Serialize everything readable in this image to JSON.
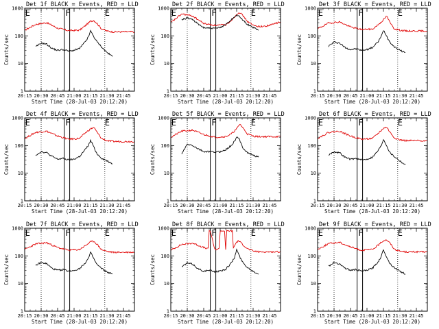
{
  "chart_data": {
    "type": "line",
    "layout": "3x3 grid of panels",
    "legend_note": "BLACK = Events, RED = LLD",
    "yscale": "log",
    "ylim": [
      1,
      1000
    ],
    "yticks": [
      "1",
      "10",
      "100",
      "1000"
    ],
    "ylabel": "Counts/sec",
    "xlabel": "Start Time (28-Jul-03 20:12:20)",
    "xlim_minutes": [
      0,
      100
    ],
    "xticks": [
      {
        "label": "20:15",
        "t": 0
      },
      {
        "label": "20:30",
        "t": 15
      },
      {
        "label": "20:45",
        "t": 30
      },
      {
        "label": "21:00",
        "t": 45
      },
      {
        "label": "21:15",
        "t": 60
      },
      {
        "label": "21:30",
        "t": 75
      },
      {
        "label": "21:45",
        "t": 90
      }
    ],
    "dotted_vlines_minutes": [
      15,
      73
    ],
    "solid_vlines_minutes": [
      36,
      41
    ],
    "flag_labels": [
      {
        "text": "E",
        "t": 0.5
      },
      {
        "text": "F",
        "t": 37
      },
      {
        "text": "E",
        "t": 73
      }
    ],
    "panels": [
      {
        "title": "Det 1f BLACK = Events, RED = LLD",
        "red": {
          "t": [
            0,
            10,
            20,
            30,
            40,
            50,
            55,
            60,
            63,
            66,
            70,
            75,
            80,
            85,
            90,
            95,
            100
          ],
          "y": [
            160,
            260,
            300,
            190,
            155,
            160,
            230,
            340,
            360,
            280,
            180,
            150,
            140,
            140,
            140,
            140,
            140
          ]
        },
        "black": {
          "t": [
            10,
            15,
            20,
            25,
            30,
            35,
            40,
            45,
            50,
            55,
            58,
            60,
            62,
            64,
            66,
            70,
            75,
            80
          ],
          "y": [
            40,
            55,
            50,
            35,
            30,
            32,
            28,
            30,
            35,
            60,
            90,
            150,
            110,
            80,
            60,
            40,
            25,
            18
          ]
        }
      },
      {
        "title": "Det 2f BLACK = Events, RED = LLD",
        "red": {
          "t": [
            0,
            10,
            20,
            30,
            40,
            50,
            55,
            60,
            62,
            64,
            66,
            70,
            75,
            80,
            85,
            90,
            95,
            100
          ],
          "y": [
            300,
            620,
            520,
            280,
            240,
            250,
            360,
            600,
            720,
            630,
            520,
            330,
            240,
            220,
            220,
            240,
            280,
            320
          ]
        },
        "black": {
          "t": [
            10,
            15,
            20,
            25,
            30,
            35,
            40,
            45,
            50,
            55,
            58,
            60,
            62,
            64,
            66,
            70,
            75,
            80
          ],
          "y": [
            380,
            450,
            390,
            260,
            200,
            190,
            185,
            200,
            260,
            380,
            480,
            580,
            520,
            430,
            360,
            260,
            200,
            160
          ]
        }
      },
      {
        "title": "Det 3f BLACK = Events, RED = LLD",
        "red": {
          "t": [
            0,
            10,
            20,
            30,
            40,
            50,
            55,
            60,
            63,
            66,
            70,
            75,
            80,
            85,
            90,
            95,
            100
          ],
          "y": [
            180,
            290,
            320,
            210,
            170,
            175,
            250,
            380,
            520,
            300,
            180,
            160,
            150,
            150,
            150,
            150,
            150
          ]
        },
        "black": {
          "t": [
            10,
            15,
            20,
            25,
            30,
            35,
            40,
            45,
            50,
            55,
            58,
            60,
            62,
            64,
            66,
            70,
            75,
            80
          ],
          "y": [
            42,
            60,
            55,
            38,
            32,
            34,
            30,
            32,
            38,
            60,
            95,
            160,
            120,
            80,
            60,
            40,
            30,
            25
          ]
        }
      },
      {
        "title": "Det 4f BLACK = Events, RED = LLD",
        "red": {
          "t": [
            0,
            10,
            20,
            30,
            40,
            50,
            55,
            60,
            63,
            66,
            70,
            75,
            80,
            85,
            90,
            95,
            100
          ],
          "y": [
            180,
            300,
            330,
            220,
            170,
            180,
            280,
            400,
            450,
            300,
            180,
            150,
            140,
            140,
            140,
            140,
            140
          ]
        },
        "black": {
          "t": [
            10,
            15,
            20,
            25,
            30,
            35,
            40,
            45,
            50,
            55,
            58,
            60,
            62,
            64,
            66,
            70,
            75,
            80
          ],
          "y": [
            45,
            60,
            55,
            40,
            32,
            34,
            30,
            32,
            40,
            70,
            100,
            150,
            110,
            70,
            50,
            35,
            28,
            22
          ]
        }
      },
      {
        "title": "Det 5f BLACK = Events, RED = LLD",
        "red": {
          "t": [
            0,
            10,
            20,
            30,
            40,
            50,
            55,
            60,
            63,
            66,
            70,
            75,
            80,
            85,
            90,
            95,
            100
          ],
          "y": [
            200,
            330,
            360,
            250,
            200,
            210,
            260,
            400,
            600,
            420,
            260,
            220,
            210,
            210,
            210,
            210,
            210
          ]
        },
        "black": {
          "t": [
            10,
            15,
            20,
            25,
            30,
            35,
            40,
            45,
            50,
            55,
            58,
            60,
            62,
            64,
            66,
            70,
            75,
            80
          ],
          "y": [
            50,
            110,
            100,
            75,
            60,
            60,
            58,
            60,
            70,
            100,
            140,
            200,
            180,
            120,
            80,
            55,
            45,
            38
          ]
        }
      },
      {
        "title": "Det 6f BLACK = Events, RED = LLD",
        "red": {
          "t": [
            0,
            10,
            20,
            30,
            40,
            50,
            55,
            60,
            63,
            66,
            70,
            75,
            80,
            85,
            90,
            95,
            100
          ],
          "y": [
            180,
            300,
            330,
            220,
            170,
            180,
            270,
            420,
            460,
            300,
            190,
            160,
            150,
            150,
            150,
            150,
            150
          ]
        },
        "black": {
          "t": [
            10,
            15,
            20,
            25,
            30,
            35,
            40,
            45,
            50,
            55,
            58,
            60,
            62,
            64,
            66,
            70,
            75,
            80
          ],
          "y": [
            45,
            60,
            55,
            38,
            32,
            34,
            30,
            32,
            38,
            65,
            100,
            170,
            120,
            80,
            55,
            40,
            28,
            20
          ]
        }
      },
      {
        "title": "Det 7f BLACK = Events, RED = LLD",
        "red": {
          "t": [
            0,
            10,
            20,
            30,
            40,
            50,
            55,
            60,
            63,
            66,
            70,
            75,
            80,
            85,
            90,
            95,
            100
          ],
          "y": [
            170,
            270,
            300,
            200,
            160,
            170,
            230,
            320,
            340,
            260,
            170,
            145,
            135,
            135,
            135,
            135,
            135
          ]
        },
        "black": {
          "t": [
            10,
            15,
            20,
            25,
            30,
            35,
            40,
            45,
            50,
            55,
            58,
            60,
            62,
            64,
            66,
            70,
            75,
            80
          ],
          "y": [
            45,
            58,
            52,
            35,
            30,
            32,
            28,
            30,
            35,
            55,
            80,
            130,
            95,
            65,
            48,
            35,
            26,
            22
          ]
        }
      },
      {
        "title": "Det 8f BLACK = Events, RED = LLD",
        "red": {
          "t": [
            0,
            10,
            20,
            30,
            34,
            35,
            36,
            40,
            44,
            45,
            49,
            50,
            51,
            52,
            55,
            56,
            57,
            58,
            60,
            62,
            65,
            70,
            75,
            80,
            85,
            90,
            95,
            100
          ],
          "y": [
            160,
            260,
            290,
            200,
            180,
            800,
            800,
            170,
            180,
            800,
            800,
            170,
            800,
            800,
            800,
            800,
            200,
            230,
            320,
            350,
            270,
            180,
            150,
            140,
            140,
            140,
            140,
            140
          ]
        },
        "black": {
          "t": [
            10,
            15,
            20,
            25,
            30,
            35,
            40,
            45,
            50,
            55,
            58,
            60,
            62,
            64,
            66,
            70,
            75,
            80
          ],
          "y": [
            40,
            55,
            50,
            34,
            28,
            30,
            27,
            28,
            33,
            55,
            85,
            170,
            110,
            75,
            55,
            38,
            28,
            22
          ]
        }
      },
      {
        "title": "Det 9f BLACK = Events, RED = LLD",
        "red": {
          "t": [
            0,
            10,
            20,
            30,
            40,
            50,
            55,
            60,
            63,
            66,
            70,
            75,
            80,
            85,
            90,
            95,
            100
          ],
          "y": [
            170,
            280,
            310,
            210,
            160,
            170,
            240,
            360,
            380,
            290,
            175,
            150,
            140,
            140,
            140,
            140,
            140
          ]
        },
        "black": {
          "t": [
            10,
            15,
            20,
            25,
            30,
            35,
            40,
            45,
            50,
            55,
            58,
            60,
            62,
            64,
            66,
            70,
            75,
            80
          ],
          "y": [
            42,
            58,
            52,
            36,
            30,
            32,
            28,
            30,
            36,
            60,
            95,
            170,
            110,
            75,
            52,
            38,
            28,
            22
          ]
        }
      }
    ]
  }
}
